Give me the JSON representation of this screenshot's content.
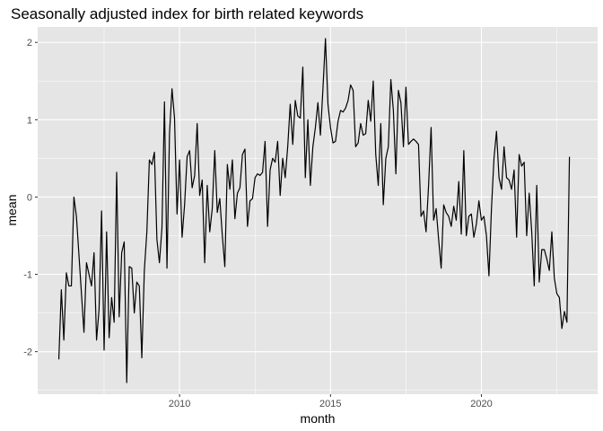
{
  "chart_data": {
    "type": "line",
    "title": "Seasonally adjusted index for birth related keywords",
    "xlabel": "month",
    "ylabel": "mean",
    "x_start": "2006-01",
    "x_frequency": "monthly",
    "x_ticks": [
      2010,
      2015,
      2020
    ],
    "y_ticks": [
      -2,
      -1,
      0,
      1,
      2
    ],
    "xlim": [
      2005.3,
      2023.85
    ],
    "ylim": [
      -2.55,
      2.2
    ],
    "grid": true,
    "legend": "none",
    "colors": {
      "panel": "#e5e5e5",
      "grid_major": "#ffffff",
      "line": "#000000"
    },
    "series": [
      {
        "values": [
          -2.1,
          -1.2,
          -1.85,
          -0.98,
          -1.15,
          -1.15,
          0.0,
          -0.25,
          -0.75,
          -1.25,
          -1.75,
          -0.85,
          -1.0,
          -1.15,
          -0.72,
          -1.85,
          -1.45,
          -0.18,
          -1.98,
          -0.45,
          -1.82,
          -1.3,
          -1.62,
          0.32,
          -1.55,
          -0.72,
          -0.58,
          -2.4,
          -0.9,
          -0.92,
          -1.5,
          -1.1,
          -1.15,
          -2.08,
          -0.95,
          -0.45,
          0.48,
          0.42,
          0.58,
          -0.55,
          -0.85,
          -0.4,
          1.23,
          -0.92,
          0.82,
          1.4,
          1.02,
          -0.22,
          0.48,
          -0.52,
          -0.1,
          0.52,
          0.6,
          0.12,
          0.28,
          0.95,
          0.02,
          0.22,
          -0.85,
          0.15,
          -0.45,
          -0.15,
          0.6,
          -0.2,
          -0.02,
          -0.5,
          -0.9,
          0.42,
          0.1,
          0.48,
          -0.28,
          0.05,
          0.12,
          0.55,
          0.62,
          -0.38,
          -0.05,
          -0.02,
          0.25,
          0.3,
          0.28,
          0.32,
          0.72,
          -0.38,
          0.35,
          0.5,
          0.45,
          0.72,
          0.02,
          0.5,
          0.25,
          0.65,
          1.2,
          0.68,
          1.25,
          1.05,
          1.02,
          1.68,
          0.25,
          1.0,
          0.15,
          0.65,
          0.9,
          1.22,
          0.8,
          1.4,
          2.05,
          1.2,
          0.9,
          0.7,
          0.72,
          0.98,
          1.12,
          1.1,
          1.15,
          1.25,
          1.45,
          1.38,
          0.65,
          0.7,
          0.95,
          0.8,
          0.82,
          1.25,
          0.98,
          1.5,
          0.55,
          0.15,
          0.95,
          -0.1,
          0.5,
          0.65,
          1.52,
          1.12,
          0.3,
          1.38,
          1.22,
          0.65,
          1.42,
          0.68,
          0.72,
          0.75,
          0.72,
          0.68,
          -0.25,
          -0.18,
          -0.45,
          0.15,
          0.9,
          -0.3,
          -0.15,
          -0.55,
          -0.92,
          -0.1,
          -0.2,
          -0.25,
          -0.38,
          -0.12,
          -0.3,
          0.2,
          -0.48,
          0.6,
          -0.5,
          -0.25,
          -0.22,
          -0.52,
          -0.35,
          -0.05,
          -0.3,
          -0.25,
          -0.5,
          -1.02,
          -0.15,
          0.5,
          0.85,
          0.25,
          0.1,
          0.65,
          0.25,
          0.22,
          0.1,
          0.35,
          -0.52,
          0.55,
          0.4,
          0.45,
          -0.5,
          0.05,
          -0.45,
          -1.15,
          0.15,
          -1.1,
          -0.68,
          -0.68,
          -0.8,
          -0.95,
          -0.45,
          -1.05,
          -1.25,
          -1.3,
          -1.7,
          -1.48,
          -1.62,
          0.52
        ]
      }
    ]
  }
}
